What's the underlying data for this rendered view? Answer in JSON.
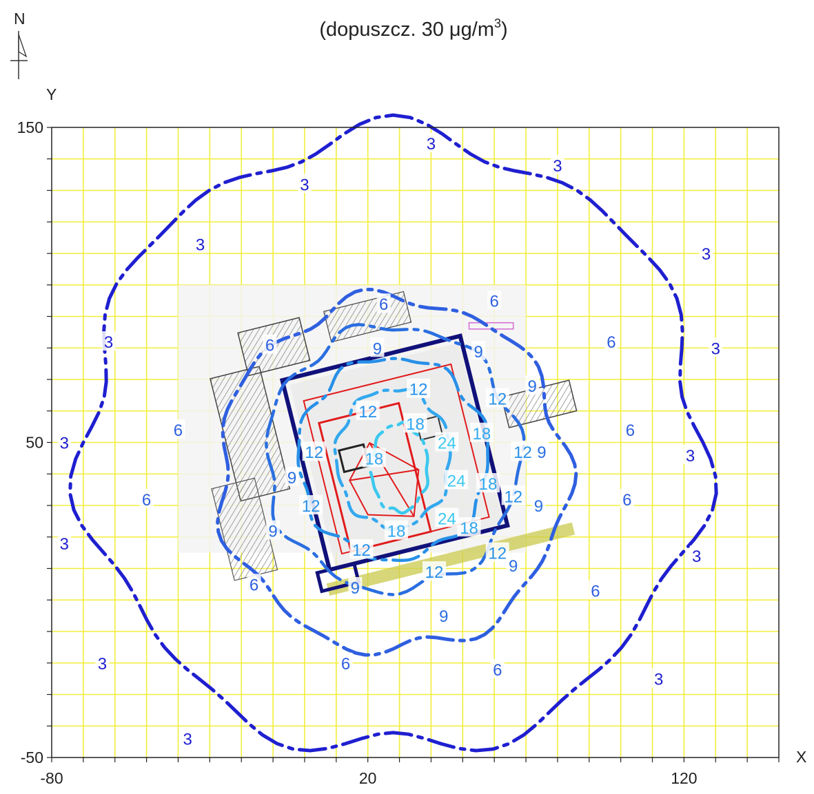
{
  "title": {
    "prefix": "(dopuszcz. 30 μg/m",
    "superscript": "3",
    "suffix": ")"
  },
  "north_arrow_label": "N",
  "axes": {
    "x_label": "X",
    "y_label": "Y",
    "x_range": [
      -80,
      150
    ],
    "y_range": [
      -50,
      150
    ],
    "x_ticks": [
      {
        "value": -80,
        "label": "-80"
      },
      {
        "value": 20,
        "label": "20"
      },
      {
        "value": 120,
        "label": "120"
      }
    ],
    "y_ticks": [
      {
        "value": 150,
        "label": "150"
      },
      {
        "value": 50,
        "label": "50"
      },
      {
        "value": -50,
        "label": "-50"
      }
    ],
    "grid_step": 10,
    "grid_color": "#f2ee3a"
  },
  "contours": [
    {
      "level": 3,
      "label": "3",
      "color": "#1f1fd0",
      "center": [
        28,
        50
      ],
      "rx": 98,
      "ry": 98
    },
    {
      "level": 6,
      "label": "6",
      "color": "#2f5fe0",
      "center": [
        28,
        40
      ],
      "rx": 55,
      "ry": 56
    },
    {
      "level": 9,
      "label": "9",
      "color": "#2a6ee0",
      "center": [
        28,
        45
      ],
      "rx": 40,
      "ry": 42
    },
    {
      "level": 12,
      "label": "12",
      "color": "#2790e8",
      "center": [
        28,
        45
      ],
      "rx": 30,
      "ry": 32
    },
    {
      "level": 18,
      "label": "18",
      "color": "#33a8ee",
      "center": [
        28,
        45
      ],
      "rx": 18,
      "ry": 22
    },
    {
      "level": 24,
      "label": "24",
      "color": "#3cc8ee",
      "center": [
        30,
        42
      ],
      "rx": 9,
      "ry": 14
    }
  ],
  "contour_labels": [
    {
      "text": "3",
      "x": 40,
      "y": 145
    },
    {
      "text": "3",
      "x": 80,
      "y": 138
    },
    {
      "text": "3",
      "x": 0,
      "y": 132
    },
    {
      "text": "3",
      "x": 127,
      "y": 110
    },
    {
      "text": "3",
      "x": -33,
      "y": 113
    },
    {
      "text": "3",
      "x": -62,
      "y": 82
    },
    {
      "text": "3",
      "x": 130,
      "y": 80
    },
    {
      "text": "3",
      "x": -76,
      "y": 50
    },
    {
      "text": "3",
      "x": 122,
      "y": 46
    },
    {
      "text": "3",
      "x": -76,
      "y": 18
    },
    {
      "text": "3",
      "x": 124,
      "y": 14
    },
    {
      "text": "3",
      "x": -64,
      "y": -20
    },
    {
      "text": "3",
      "x": 112,
      "y": -25
    },
    {
      "text": "3",
      "x": -37,
      "y": -44
    },
    {
      "text": "6",
      "x": 25,
      "y": 94
    },
    {
      "text": "6",
      "x": 60,
      "y": 95
    },
    {
      "text": "6",
      "x": -11,
      "y": 81
    },
    {
      "text": "6",
      "x": 97,
      "y": 82
    },
    {
      "text": "6",
      "x": -40,
      "y": 54
    },
    {
      "text": "6",
      "x": 103,
      "y": 54
    },
    {
      "text": "6",
      "x": -50,
      "y": 32
    },
    {
      "text": "6",
      "x": 102,
      "y": 32
    },
    {
      "text": "6",
      "x": -16,
      "y": 5
    },
    {
      "text": "6",
      "x": 92,
      "y": 3
    },
    {
      "text": "6",
      "x": 13,
      "y": -20
    },
    {
      "text": "6",
      "x": 61,
      "y": -22
    },
    {
      "text": "9",
      "x": 23,
      "y": 80
    },
    {
      "text": "9",
      "x": 55,
      "y": 79
    },
    {
      "text": "9",
      "x": 72,
      "y": 68
    },
    {
      "text": "9",
      "x": -4,
      "y": 39
    },
    {
      "text": "9",
      "x": 75,
      "y": 47
    },
    {
      "text": "9",
      "x": -10,
      "y": 22
    },
    {
      "text": "9",
      "x": 74,
      "y": 30
    },
    {
      "text": "9",
      "x": 66,
      "y": 11
    },
    {
      "text": "9",
      "x": 16,
      "y": 4
    },
    {
      "text": "9",
      "x": 44,
      "y": -5
    },
    {
      "text": "12",
      "x": 36,
      "y": 67
    },
    {
      "text": "12",
      "x": 61,
      "y": 64
    },
    {
      "text": "12",
      "x": 20,
      "y": 60
    },
    {
      "text": "12",
      "x": 69,
      "y": 47
    },
    {
      "text": "12",
      "x": 3,
      "y": 47
    },
    {
      "text": "12",
      "x": 2,
      "y": 30
    },
    {
      "text": "12",
      "x": 66,
      "y": 33
    },
    {
      "text": "12",
      "x": 18,
      "y": 16
    },
    {
      "text": "12",
      "x": 61,
      "y": 15
    },
    {
      "text": "12",
      "x": 41,
      "y": 9
    },
    {
      "text": "18",
      "x": 35,
      "y": 56
    },
    {
      "text": "18",
      "x": 56,
      "y": 53
    },
    {
      "text": "18",
      "x": 22,
      "y": 45
    },
    {
      "text": "18",
      "x": 58,
      "y": 37
    },
    {
      "text": "18",
      "x": 29,
      "y": 22
    },
    {
      "text": "18",
      "x": 52,
      "y": 23
    },
    {
      "text": "24",
      "x": 45,
      "y": 50
    },
    {
      "text": "24",
      "x": 48,
      "y": 38
    },
    {
      "text": "24",
      "x": 45,
      "y": 26
    }
  ],
  "site_plan": {
    "building_outline_color": "#11117a",
    "red_overlay_color": "#e11b1b",
    "gray_color": "#777777"
  }
}
